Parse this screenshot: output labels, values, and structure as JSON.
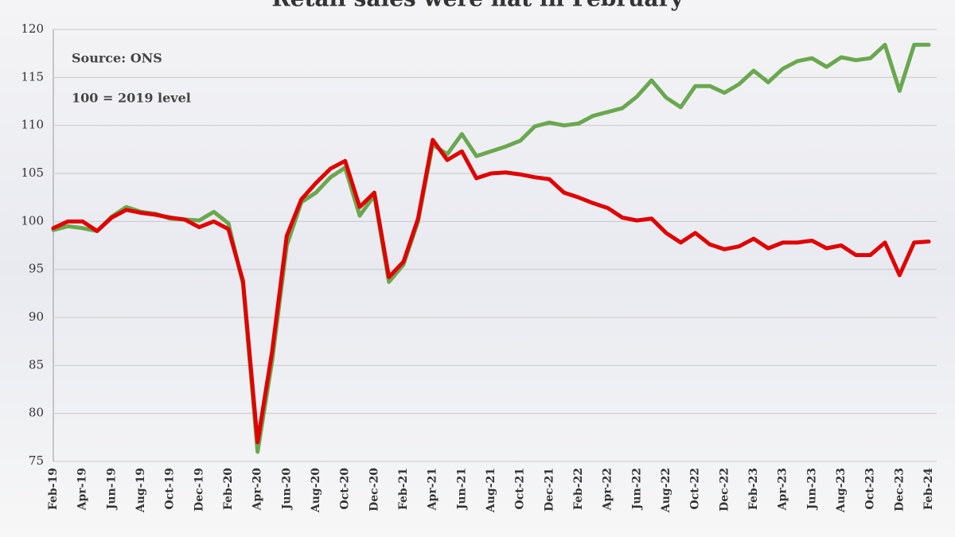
{
  "chart_data": {
    "type": "line",
    "title": "Retail sales were flat in February",
    "annotations": [
      "Source: ONS",
      "100 = 2019 level"
    ],
    "categories": [
      "Feb-19",
      null,
      "Apr-19",
      null,
      "Jun-19",
      null,
      "Aug-19",
      null,
      "Oct-19",
      null,
      "Dec-19",
      null,
      "Feb-20",
      null,
      "Apr-20",
      null,
      "Jun-20",
      null,
      "Aug-20",
      null,
      "Oct-20",
      null,
      "Dec-20",
      null,
      "Feb-21",
      null,
      "Apr-21",
      null,
      "Jun-21",
      null,
      "Aug-21",
      null,
      "Oct-21",
      null,
      "Dec-21",
      null,
      "Feb-22",
      null,
      "Apr-22",
      null,
      "Jun-22",
      null,
      "Aug-22",
      null,
      "Oct-22",
      null,
      "Dec-22",
      null,
      "Feb-23",
      null,
      "Apr-23",
      null,
      "Jun-23",
      null,
      "Aug-23",
      null,
      "Oct-23",
      null,
      "Dec-23",
      null,
      "Feb-24"
    ],
    "series": [
      {
        "color": "#6aa84f",
        "values": [
          99.1,
          99.5,
          99.3,
          99.0,
          100.5,
          101.5,
          101.0,
          100.8,
          100.3,
          100.2,
          100.1,
          101.0,
          99.8,
          93.5,
          76.0,
          85.5,
          97.5,
          102.0,
          103.0,
          104.6,
          105.6,
          100.6,
          102.7,
          93.7,
          95.5,
          100.0,
          108.0,
          107.0,
          109.1,
          106.8,
          107.3,
          107.8,
          108.4,
          109.9,
          110.3,
          110.0,
          110.2,
          111.0,
          111.4,
          111.8,
          113.0,
          114.7,
          112.9,
          111.9,
          114.1,
          114.1,
          113.4,
          114.3,
          115.7,
          114.5,
          115.9,
          116.7,
          117.0,
          116.1,
          117.1,
          116.8,
          117.0,
          118.4,
          113.6,
          118.4,
          118.4
        ]
      },
      {
        "color": "#e00000",
        "values": [
          99.3,
          100.0,
          100.0,
          99.0,
          100.4,
          101.2,
          100.9,
          100.7,
          100.4,
          100.2,
          99.4,
          100.0,
          99.2,
          93.8,
          77.0,
          86.5,
          98.5,
          102.3,
          104.0,
          105.5,
          106.3,
          101.5,
          103.0,
          94.2,
          95.8,
          100.3,
          108.5,
          106.4,
          107.3,
          104.5,
          105.0,
          105.1,
          104.9,
          104.6,
          104.4,
          103.0,
          102.5,
          101.9,
          101.4,
          100.4,
          100.1,
          100.3,
          98.8,
          97.8,
          98.8,
          97.6,
          97.1,
          97.4,
          98.2,
          97.2,
          97.8,
          97.8,
          98.0,
          97.2,
          97.5,
          96.5,
          96.5,
          97.8,
          94.4,
          97.8,
          97.9
        ]
      }
    ],
    "ylim": [
      75,
      120
    ],
    "yticks": [
      75,
      80,
      85,
      90,
      95,
      100,
      105,
      110,
      115,
      120
    ],
    "grid": true
  }
}
